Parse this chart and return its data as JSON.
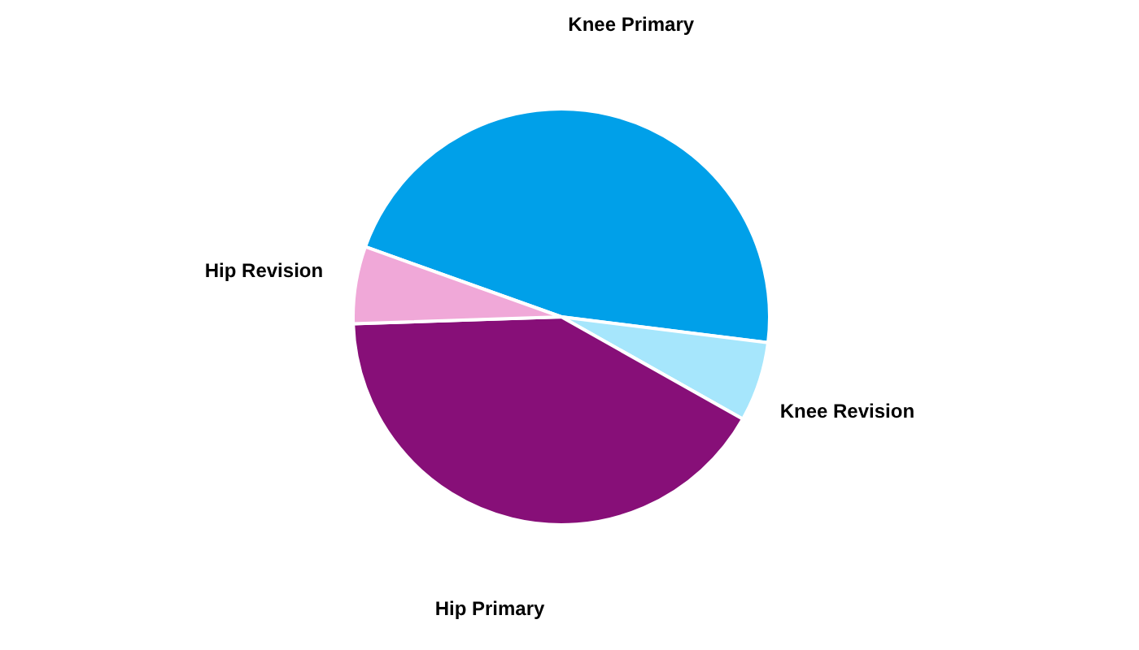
{
  "chart_data": {
    "type": "pie",
    "categories": [
      "Knee Primary",
      "Knee Revision",
      "Hip Primary",
      "Hip Revision"
    ],
    "values": [
      46.5,
      6.2,
      41.3,
      6.0
    ],
    "colors": [
      "#00a0e9",
      "#a6e6fc",
      "#870f78",
      "#f0a8d8"
    ],
    "legend": false
  }
}
